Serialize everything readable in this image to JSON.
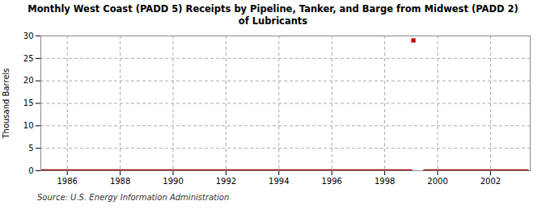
{
  "chart_data": {
    "type": "line",
    "title": "Monthly West Coast (PADD 5) Receipts by Pipeline, Tanker, and Barge from Midwest (PADD 2)\nof Lubricants",
    "ylabel": "Thousand Barrels",
    "source": "Source: U.S. Energy Information Administration",
    "x": [
      1985.0,
      1999.0,
      1999.083,
      1999.5,
      2003.4
    ],
    "series": [
      {
        "type": "line",
        "color": "#990000",
        "values": [
          0.0,
          0.0,
          null,
          0.0,
          0.0
        ]
      },
      {
        "type": "scatter",
        "color": "#cc0000",
        "marker": "square",
        "values": [
          null,
          null,
          29.0,
          null,
          null
        ]
      }
    ],
    "xlim": [
      1985.0,
      2003.5
    ],
    "ylim": [
      0,
      30
    ],
    "xticks": [
      1986,
      1988,
      1990,
      1992,
      1994,
      1996,
      1998,
      2000,
      2002
    ],
    "yticks": [
      0,
      5,
      10,
      15,
      20,
      25,
      30
    ],
    "grid": true
  }
}
